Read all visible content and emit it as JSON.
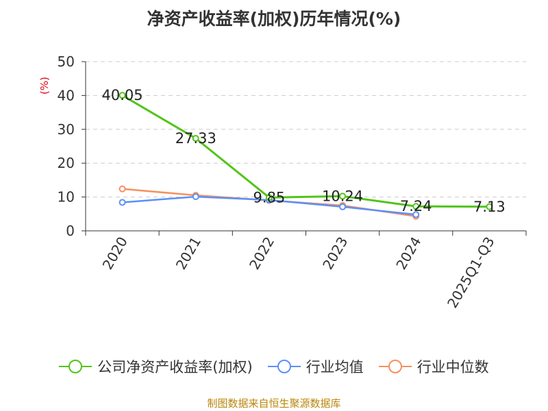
{
  "chart_data": {
    "type": "line",
    "title": "净资产收益率(加权)历年情况(%)",
    "ylabel": "(%)",
    "xlabel": "",
    "ylim": [
      0,
      50
    ],
    "yticks": [
      0,
      10,
      20,
      30,
      40,
      50
    ],
    "grid": true,
    "legend_position": "bottom",
    "categories": [
      "2020",
      "2021",
      "2022",
      "2023",
      "2024",
      "2025Q1-Q3"
    ],
    "series": [
      {
        "name": "公司净资产收益率(加权)",
        "color": "#52c41a",
        "values": [
          40.05,
          27.33,
          9.85,
          10.24,
          7.24,
          7.13
        ],
        "labels": [
          "40.05",
          "27.33",
          "9.85",
          "10.24",
          "7.24",
          "7.13"
        ]
      },
      {
        "name": "行业均值",
        "color": "#5b8ff9",
        "values": [
          8.4,
          10.1,
          9.1,
          7.1,
          4.8,
          null
        ]
      },
      {
        "name": "行业中位数",
        "color": "#f6905f",
        "values": [
          12.4,
          10.5,
          9.0,
          7.5,
          4.3,
          null
        ]
      }
    ]
  },
  "source": "制图数据来自恒生聚源数据库"
}
